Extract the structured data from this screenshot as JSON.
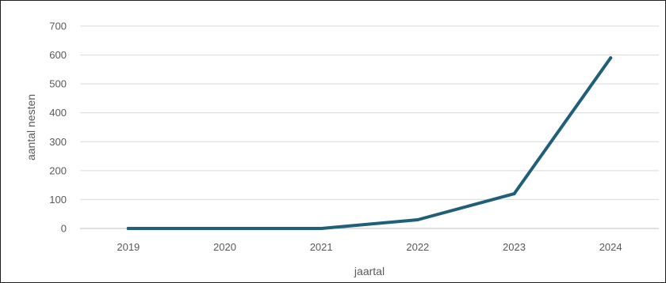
{
  "chart_data": {
    "type": "line",
    "title": "",
    "xlabel": "jaartal",
    "ylabel": "aantal nesten",
    "categories": [
      "2019",
      "2020",
      "2021",
      "2022",
      "2023",
      "2024"
    ],
    "series": [
      {
        "values": [
          0,
          0,
          0,
          30,
          120,
          590
        ]
      }
    ],
    "ylim": [
      0,
      700
    ],
    "yticks": [
      0,
      100,
      200,
      300,
      400,
      500,
      600,
      700
    ],
    "grid": "horizontal",
    "legend": "none",
    "colors": {
      "line": "#1f5f7a",
      "grid": "#d9d9d9",
      "axis": "#bfbfbf",
      "text": "#595959"
    }
  }
}
